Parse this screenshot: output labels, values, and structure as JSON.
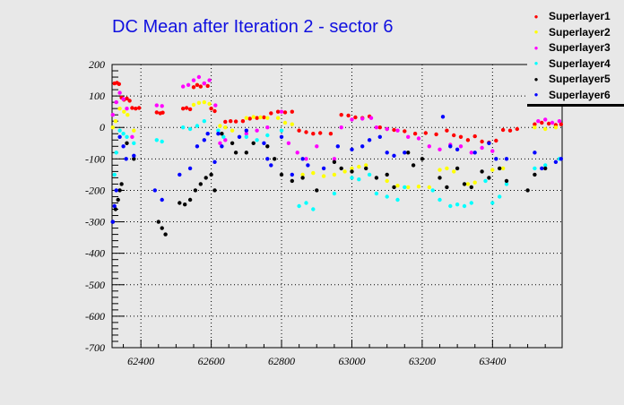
{
  "chart_data": {
    "type": "scatter",
    "title": "DC Mean after Iteration 2 - sector 6",
    "xlabel": "",
    "ylabel": "",
    "xlim": [
      62318,
      63598
    ],
    "ylim": [
      -700,
      200
    ],
    "xticks": [
      62400,
      62600,
      62800,
      63000,
      63200,
      63400
    ],
    "yticks": [
      200,
      100,
      0,
      -100,
      -200,
      -300,
      -400,
      -500,
      -600,
      -700
    ],
    "grid": true,
    "legend_position": "top-right",
    "series": [
      {
        "name": "Superlayer1",
        "color": "#ff0000",
        "points": [
          [
            62325,
            140
          ],
          [
            62332,
            142
          ],
          [
            62338,
            138
          ],
          [
            62345,
            95
          ],
          [
            62352,
            88
          ],
          [
            62360,
            92
          ],
          [
            62368,
            85
          ],
          [
            62375,
            62
          ],
          [
            62385,
            60
          ],
          [
            62395,
            62
          ],
          [
            62445,
            48
          ],
          [
            62455,
            45
          ],
          [
            62462,
            47
          ],
          [
            62520,
            60
          ],
          [
            62530,
            62
          ],
          [
            62540,
            58
          ],
          [
            62550,
            128
          ],
          [
            62560,
            135
          ],
          [
            62570,
            130
          ],
          [
            62580,
            140
          ],
          [
            62590,
            132
          ],
          [
            62600,
            60
          ],
          [
            62610,
            52
          ],
          [
            62640,
            18
          ],
          [
            62655,
            20
          ],
          [
            62670,
            19
          ],
          [
            62690,
            20
          ],
          [
            62710,
            28
          ],
          [
            62730,
            30
          ],
          [
            62750,
            32
          ],
          [
            62770,
            45
          ],
          [
            62790,
            50
          ],
          [
            62810,
            48
          ],
          [
            62830,
            50
          ],
          [
            62850,
            -10
          ],
          [
            62870,
            -15
          ],
          [
            62890,
            -20
          ],
          [
            62910,
            -18
          ],
          [
            62940,
            -20
          ],
          [
            62970,
            40
          ],
          [
            62990,
            38
          ],
          [
            63010,
            32
          ],
          [
            63030,
            30
          ],
          [
            63050,
            35
          ],
          [
            63080,
            0
          ],
          [
            63100,
            -5
          ],
          [
            63120,
            -8
          ],
          [
            63150,
            -12
          ],
          [
            63180,
            -20
          ],
          [
            63210,
            -18
          ],
          [
            63240,
            -22
          ],
          [
            63270,
            -10
          ],
          [
            63290,
            -25
          ],
          [
            63310,
            -30
          ],
          [
            63330,
            -40
          ],
          [
            63350,
            -28
          ],
          [
            63370,
            -45
          ],
          [
            63390,
            -48
          ],
          [
            63410,
            -42
          ],
          [
            63430,
            -8
          ],
          [
            63450,
            -10
          ],
          [
            63470,
            -5
          ],
          [
            63520,
            10
          ],
          [
            63540,
            15
          ],
          [
            63560,
            12
          ],
          [
            63580,
            8
          ],
          [
            63595,
            10
          ]
        ]
      },
      {
        "name": "Superlayer2",
        "color": "#ffff00",
        "points": [
          [
            62320,
            0
          ],
          [
            62328,
            20
          ],
          [
            62340,
            60
          ],
          [
            62352,
            50
          ],
          [
            62362,
            40
          ],
          [
            62380,
            -10
          ],
          [
            62550,
            72
          ],
          [
            62565,
            78
          ],
          [
            62580,
            80
          ],
          [
            62595,
            75
          ],
          [
            62625,
            5
          ],
          [
            62640,
            0
          ],
          [
            62660,
            -10
          ],
          [
            62700,
            30
          ],
          [
            62720,
            33
          ],
          [
            62740,
            32
          ],
          [
            62760,
            30
          ],
          [
            62790,
            30
          ],
          [
            62810,
            15
          ],
          [
            62830,
            10
          ],
          [
            62860,
            -150
          ],
          [
            62890,
            -145
          ],
          [
            62920,
            -155
          ],
          [
            62950,
            -150
          ],
          [
            62980,
            -140
          ],
          [
            63000,
            -130
          ],
          [
            63020,
            -125
          ],
          [
            63040,
            -120
          ],
          [
            63100,
            -170
          ],
          [
            63130,
            -185
          ],
          [
            63160,
            -190
          ],
          [
            63190,
            -188
          ],
          [
            63220,
            -190
          ],
          [
            63250,
            -135
          ],
          [
            63270,
            -130
          ],
          [
            63290,
            -140
          ],
          [
            63330,
            -180
          ],
          [
            63350,
            -175
          ],
          [
            63400,
            -135
          ],
          [
            63430,
            -130
          ],
          [
            63520,
            0
          ],
          [
            63550,
            -5
          ],
          [
            63580,
            0
          ]
        ]
      },
      {
        "name": "Superlayer3",
        "color": "#ff00ff",
        "points": [
          [
            62320,
            40
          ],
          [
            62330,
            80
          ],
          [
            62340,
            110
          ],
          [
            62350,
            90
          ],
          [
            62360,
            60
          ],
          [
            62375,
            -30
          ],
          [
            62445,
            70
          ],
          [
            62460,
            68
          ],
          [
            62520,
            130
          ],
          [
            62535,
            135
          ],
          [
            62550,
            150
          ],
          [
            62565,
            160
          ],
          [
            62580,
            140
          ],
          [
            62595,
            150
          ],
          [
            62612,
            70
          ],
          [
            62625,
            -50
          ],
          [
            62640,
            -40
          ],
          [
            62700,
            -20
          ],
          [
            62730,
            -10
          ],
          [
            62760,
            0
          ],
          [
            62800,
            50
          ],
          [
            62820,
            -50
          ],
          [
            62845,
            -80
          ],
          [
            62870,
            -100
          ],
          [
            62900,
            -60
          ],
          [
            62950,
            -100
          ],
          [
            62970,
            0
          ],
          [
            63000,
            25
          ],
          [
            63030,
            28
          ],
          [
            63055,
            30
          ],
          [
            63070,
            0
          ],
          [
            63100,
            -5
          ],
          [
            63130,
            -10
          ],
          [
            63160,
            -30
          ],
          [
            63190,
            -35
          ],
          [
            63220,
            -60
          ],
          [
            63250,
            -70
          ],
          [
            63280,
            -55
          ],
          [
            63310,
            -60
          ],
          [
            63340,
            -80
          ],
          [
            63370,
            -65
          ],
          [
            63400,
            -75
          ],
          [
            63530,
            20
          ],
          [
            63550,
            25
          ],
          [
            63570,
            15
          ],
          [
            63590,
            20
          ]
        ]
      },
      {
        "name": "Superlayer4",
        "color": "#00ffff",
        "points": [
          [
            62325,
            -150
          ],
          [
            62330,
            -80
          ],
          [
            62340,
            -10
          ],
          [
            62350,
            -20
          ],
          [
            62360,
            -30
          ],
          [
            62380,
            -50
          ],
          [
            62445,
            -40
          ],
          [
            62460,
            -45
          ],
          [
            62520,
            0
          ],
          [
            62540,
            -5
          ],
          [
            62560,
            5
          ],
          [
            62580,
            20
          ],
          [
            62620,
            -10
          ],
          [
            62635,
            -30
          ],
          [
            62700,
            -30
          ],
          [
            62730,
            -40
          ],
          [
            62760,
            -25
          ],
          [
            62800,
            -10
          ],
          [
            62850,
            -250
          ],
          [
            62870,
            -240
          ],
          [
            62890,
            -260
          ],
          [
            62950,
            -210
          ],
          [
            63000,
            -160
          ],
          [
            63020,
            -165
          ],
          [
            63050,
            -150
          ],
          [
            63070,
            -210
          ],
          [
            63100,
            -220
          ],
          [
            63130,
            -230
          ],
          [
            63150,
            -190
          ],
          [
            63230,
            -200
          ],
          [
            63250,
            -230
          ],
          [
            63280,
            -250
          ],
          [
            63300,
            -245
          ],
          [
            63320,
            -250
          ],
          [
            63340,
            -240
          ],
          [
            63380,
            -170
          ],
          [
            63400,
            -240
          ],
          [
            63420,
            -220
          ],
          [
            63440,
            -180
          ],
          [
            63520,
            -130
          ],
          [
            63550,
            -120
          ],
          [
            63590,
            -100
          ]
        ]
      },
      {
        "name": "Superlayer5",
        "color": "#000000",
        "points": [
          [
            62320,
            -300
          ],
          [
            62328,
            -260
          ],
          [
            62335,
            -230
          ],
          [
            62340,
            -200
          ],
          [
            62345,
            -180
          ],
          [
            62360,
            -50
          ],
          [
            62380,
            -100
          ],
          [
            62450,
            -300
          ],
          [
            62460,
            -320
          ],
          [
            62470,
            -340
          ],
          [
            62510,
            -240
          ],
          [
            62525,
            -245
          ],
          [
            62540,
            -230
          ],
          [
            62555,
            -200
          ],
          [
            62570,
            -180
          ],
          [
            62585,
            -160
          ],
          [
            62600,
            -150
          ],
          [
            62610,
            -200
          ],
          [
            62630,
            -20
          ],
          [
            62660,
            -50
          ],
          [
            62670,
            -80
          ],
          [
            62700,
            -80
          ],
          [
            62720,
            -50
          ],
          [
            62760,
            -60
          ],
          [
            62780,
            -100
          ],
          [
            62800,
            -150
          ],
          [
            62830,
            -170
          ],
          [
            62860,
            -160
          ],
          [
            62900,
            -200
          ],
          [
            62950,
            -110
          ],
          [
            62970,
            -130
          ],
          [
            63000,
            -140
          ],
          [
            63040,
            -130
          ],
          [
            63070,
            -160
          ],
          [
            63100,
            -150
          ],
          [
            63120,
            -190
          ],
          [
            63160,
            -80
          ],
          [
            63175,
            -120
          ],
          [
            63200,
            -100
          ],
          [
            63250,
            -160
          ],
          [
            63270,
            -190
          ],
          [
            63300,
            -130
          ],
          [
            63320,
            -180
          ],
          [
            63340,
            -190
          ],
          [
            63370,
            -140
          ],
          [
            63390,
            -160
          ],
          [
            63420,
            -130
          ],
          [
            63440,
            -170
          ],
          [
            63500,
            -200
          ],
          [
            63520,
            -150
          ],
          [
            63550,
            -130
          ]
        ]
      },
      {
        "name": "Superlayer6",
        "color": "#0000ff",
        "points": [
          [
            62320,
            -300
          ],
          [
            62325,
            -250
          ],
          [
            62330,
            -200
          ],
          [
            62340,
            -30
          ],
          [
            62350,
            -60
          ],
          [
            62358,
            -100
          ],
          [
            62380,
            -90
          ],
          [
            62440,
            -200
          ],
          [
            62460,
            -230
          ],
          [
            62510,
            -150
          ],
          [
            62540,
            -130
          ],
          [
            62560,
            -60
          ],
          [
            62580,
            -40
          ],
          [
            62590,
            -20
          ],
          [
            62610,
            -110
          ],
          [
            62620,
            -20
          ],
          [
            62630,
            -60
          ],
          [
            62680,
            -30
          ],
          [
            62700,
            -10
          ],
          [
            62750,
            -50
          ],
          [
            62760,
            -100
          ],
          [
            62770,
            -120
          ],
          [
            62800,
            -30
          ],
          [
            62830,
            -150
          ],
          [
            62860,
            -100
          ],
          [
            62875,
            -120
          ],
          [
            62920,
            -130
          ],
          [
            62960,
            -60
          ],
          [
            63000,
            -70
          ],
          [
            63030,
            -60
          ],
          [
            63050,
            -40
          ],
          [
            63080,
            -30
          ],
          [
            63100,
            -80
          ],
          [
            63120,
            -90
          ],
          [
            63150,
            -80
          ],
          [
            63259,
            34
          ],
          [
            63280,
            -60
          ],
          [
            63300,
            -70
          ],
          [
            63350,
            -80
          ],
          [
            63390,
            -50
          ],
          [
            63410,
            -100
          ],
          [
            63440,
            -100
          ],
          [
            63520,
            -80
          ],
          [
            63540,
            -130
          ],
          [
            63580,
            -110
          ],
          [
            63595,
            -100
          ]
        ]
      }
    ]
  }
}
